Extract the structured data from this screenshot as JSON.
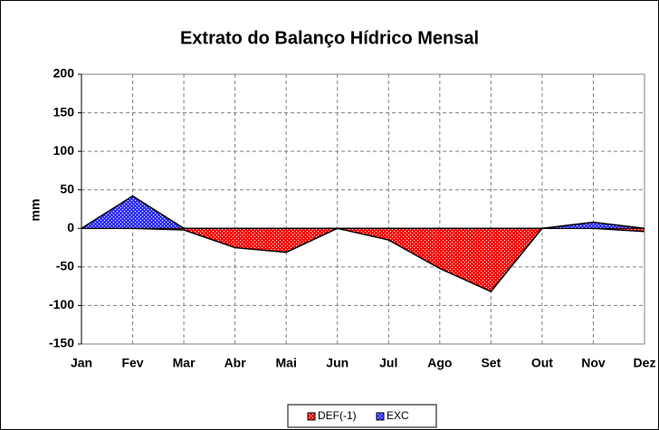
{
  "chart_data": {
    "type": "area",
    "title": "Extrato do Balanço Hídrico Mensal",
    "y_label": "mm",
    "categories": [
      "Jan",
      "Fev",
      "Mar",
      "Abr",
      "Mai",
      "Jun",
      "Jul",
      "Ago",
      "Set",
      "Out",
      "Nov",
      "Dez"
    ],
    "series": [
      {
        "name": "DEF(-1)",
        "color": "#ff0000",
        "values": [
          0,
          0,
          -2,
          -25,
          -31,
          0,
          -15,
          -52,
          -82,
          0,
          0,
          -4
        ]
      },
      {
        "name": "EXC",
        "color": "#3333ff",
        "values": [
          0,
          42,
          0,
          0,
          0,
          0,
          0,
          0,
          0,
          0,
          8,
          0
        ]
      }
    ],
    "ylim": [
      -150,
      200
    ],
    "yticks": [
      -150,
      -100,
      -50,
      0,
      50,
      100,
      150,
      200
    ],
    "grid": true,
    "legend": "bottom"
  }
}
